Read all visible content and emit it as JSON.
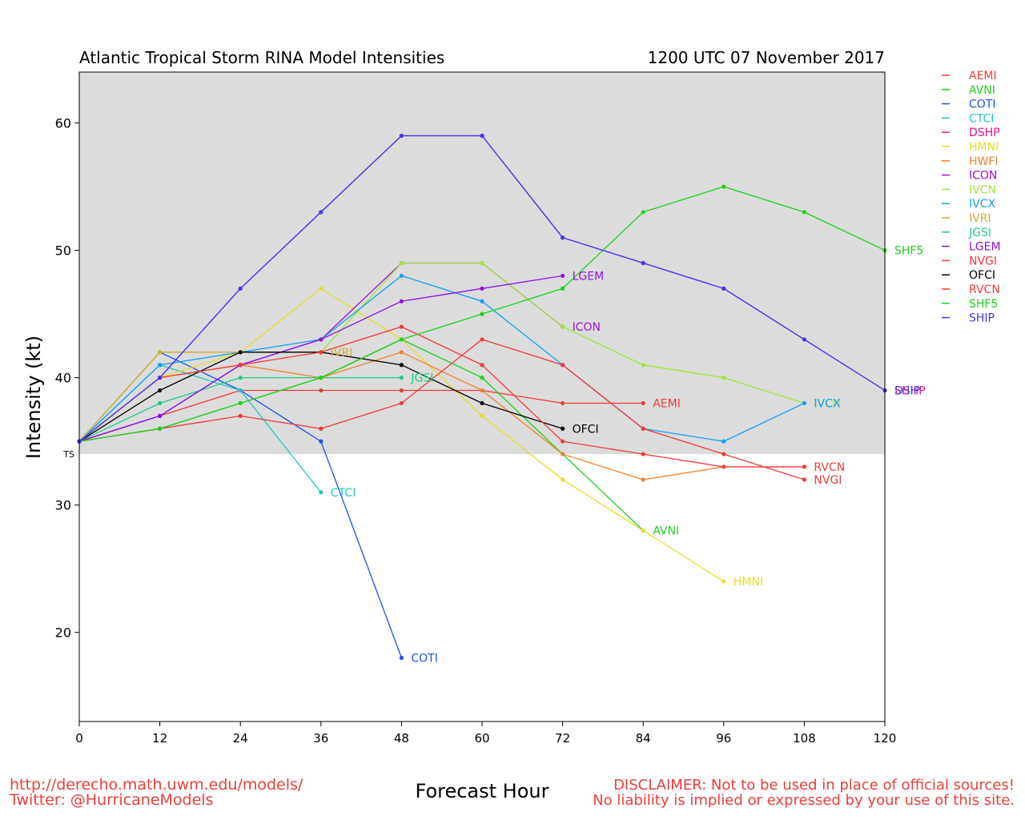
{
  "chart_data": {
    "type": "line",
    "title": "Atlantic Tropical Storm RINA Model Intensities",
    "subtitle": "1200 UTC 07 November 2017",
    "xlabel": "Forecast Hour",
    "ylabel": "Intensity (kt)",
    "xlim": [
      0,
      120
    ],
    "ylim": [
      13,
      64
    ],
    "xticks": [
      0,
      12,
      24,
      36,
      48,
      60,
      72,
      84,
      96,
      108,
      120
    ],
    "yticks": [
      20,
      30,
      40,
      50,
      60
    ],
    "threshold": {
      "label": "TS",
      "value": 34
    },
    "legend_position": "right",
    "series": [
      {
        "name": "AEMI",
        "color": "#ef3b3b",
        "end_label": "AEMI",
        "points": [
          [
            0,
            35
          ],
          [
            12,
            37
          ],
          [
            24,
            39
          ],
          [
            36,
            39
          ],
          [
            48,
            39
          ],
          [
            60,
            39
          ],
          [
            72,
            38
          ],
          [
            84,
            38
          ]
        ]
      },
      {
        "name": "AVNI",
        "color": "#1ed21e",
        "end_label": "AVNI",
        "points": [
          [
            0,
            35
          ],
          [
            12,
            36
          ],
          [
            24,
            38
          ],
          [
            36,
            40
          ],
          [
            48,
            43
          ],
          [
            60,
            40
          ],
          [
            72,
            34
          ],
          [
            84,
            28
          ]
        ]
      },
      {
        "name": "COTI",
        "color": "#1e52e6",
        "end_label": "COTI",
        "points": [
          [
            0,
            35
          ],
          [
            12,
            42
          ],
          [
            24,
            39
          ],
          [
            36,
            35
          ],
          [
            48,
            18
          ]
        ]
      },
      {
        "name": "CTCI",
        "color": "#1ec8c8",
        "end_label": "CTCI",
        "points": [
          [
            0,
            35
          ],
          [
            12,
            41
          ],
          [
            24,
            39
          ],
          [
            36,
            31
          ]
        ]
      },
      {
        "name": "DSHP",
        "color": "#e6148c",
        "end_label": "DSHP",
        "points": [
          [
            0,
            35
          ],
          [
            12,
            40
          ],
          [
            24,
            47
          ],
          [
            36,
            53
          ],
          [
            48,
            59
          ],
          [
            60,
            59
          ],
          [
            72,
            51
          ],
          [
            84,
            49
          ],
          [
            96,
            47
          ],
          [
            108,
            43
          ],
          [
            120,
            39
          ]
        ]
      },
      {
        "name": "HMNI",
        "color": "#e6dc28",
        "end_label": "HMNI",
        "points": [
          [
            0,
            35
          ],
          [
            12,
            40
          ],
          [
            24,
            42
          ],
          [
            36,
            47
          ],
          [
            48,
            43
          ],
          [
            60,
            37
          ],
          [
            72,
            32
          ],
          [
            84,
            28
          ],
          [
            96,
            24
          ]
        ]
      },
      {
        "name": "HWFI",
        "color": "#f0822c",
        "end_label": "",
        "points": [
          [
            0,
            35
          ],
          [
            12,
            40
          ],
          [
            24,
            41
          ],
          [
            36,
            40
          ],
          [
            48,
            42
          ],
          [
            60,
            39
          ],
          [
            72,
            34
          ],
          [
            84,
            32
          ],
          [
            96,
            33
          ],
          [
            108,
            33
          ]
        ]
      },
      {
        "name": "ICON",
        "color": "#a014d2",
        "end_label": "ICON",
        "points": [
          [
            0,
            35
          ],
          [
            12,
            37
          ],
          [
            24,
            41
          ],
          [
            36,
            43
          ],
          [
            48,
            49
          ],
          [
            60,
            49
          ],
          [
            72,
            44
          ]
        ]
      },
      {
        "name": "IVCN",
        "color": "#9ee63c",
        "end_label": "IVCN",
        "points": [
          [
            0,
            35
          ],
          [
            12,
            42
          ],
          [
            24,
            42
          ],
          [
            36,
            42
          ],
          [
            48,
            49
          ],
          [
            60,
            49
          ],
          [
            72,
            44
          ],
          [
            84,
            41
          ],
          [
            96,
            40
          ],
          [
            108,
            38
          ]
        ]
      },
      {
        "name": "IVCX",
        "color": "#14a0f0",
        "end_label": "IVCX",
        "points": [
          [
            0,
            35
          ],
          [
            12,
            41
          ],
          [
            24,
            42
          ],
          [
            36,
            43
          ],
          [
            48,
            48
          ],
          [
            60,
            46
          ],
          [
            72,
            41
          ],
          [
            84,
            36
          ],
          [
            96,
            35
          ],
          [
            108,
            38
          ]
        ]
      },
      {
        "name": "IVRI",
        "color": "#d2aa3c",
        "end_label": "IVRI",
        "points": [
          [
            0,
            35
          ],
          [
            12,
            42
          ],
          [
            24,
            42
          ],
          [
            36,
            42
          ]
        ]
      },
      {
        "name": "JGSI",
        "color": "#1ecd82",
        "end_label": "JGSI",
        "points": [
          [
            0,
            35
          ],
          [
            12,
            38
          ],
          [
            24,
            40
          ],
          [
            36,
            40
          ],
          [
            48,
            40
          ]
        ]
      },
      {
        "name": "LGEM",
        "color": "#8c14e6",
        "end_label": "LGEM",
        "points": [
          [
            0,
            35
          ],
          [
            12,
            37
          ],
          [
            24,
            41
          ],
          [
            36,
            43
          ],
          [
            48,
            46
          ],
          [
            60,
            47
          ],
          [
            72,
            48
          ]
        ]
      },
      {
        "name": "NVGI",
        "color": "#ef3b3b",
        "end_label": "NVGI",
        "points": [
          [
            0,
            35
          ],
          [
            12,
            36
          ],
          [
            24,
            37
          ],
          [
            36,
            36
          ],
          [
            48,
            38
          ],
          [
            60,
            43
          ],
          [
            72,
            41
          ],
          [
            84,
            36
          ],
          [
            96,
            34
          ],
          [
            108,
            32
          ]
        ]
      },
      {
        "name": "OFCI",
        "color": "#000000",
        "end_label": "OFCI",
        "points": [
          [
            0,
            35
          ],
          [
            12,
            39
          ],
          [
            24,
            42
          ],
          [
            36,
            42
          ],
          [
            48,
            41
          ],
          [
            60,
            38
          ],
          [
            72,
            36
          ]
        ]
      },
      {
        "name": "RVCN",
        "color": "#ef3b3b",
        "end_label": "RVCN",
        "points": [
          [
            0,
            35
          ],
          [
            12,
            40
          ],
          [
            24,
            41
          ],
          [
            36,
            42
          ],
          [
            48,
            44
          ],
          [
            60,
            41
          ],
          [
            72,
            35
          ],
          [
            84,
            34
          ],
          [
            96,
            33
          ],
          [
            108,
            33
          ]
        ]
      },
      {
        "name": "SHF5",
        "color": "#1ed21e",
        "end_label": "SHF5",
        "points": [
          [
            0,
            35
          ],
          [
            12,
            36
          ],
          [
            24,
            38
          ],
          [
            36,
            40
          ],
          [
            48,
            43
          ],
          [
            60,
            45
          ],
          [
            72,
            47
          ],
          [
            84,
            53
          ],
          [
            96,
            55
          ],
          [
            108,
            53
          ],
          [
            120,
            50
          ]
        ]
      },
      {
        "name": "SHIP",
        "color": "#3c3cf0",
        "end_label": "SHIP",
        "points": [
          [
            0,
            35
          ],
          [
            12,
            40
          ],
          [
            24,
            47
          ],
          [
            36,
            53
          ],
          [
            48,
            59
          ],
          [
            60,
            59
          ],
          [
            72,
            51
          ],
          [
            84,
            49
          ],
          [
            96,
            47
          ],
          [
            108,
            43
          ],
          [
            120,
            39
          ]
        ]
      }
    ]
  },
  "footer": {
    "url": "http://derecho.math.uwm.edu/models/",
    "twitter": "Twitter: @HurricaneModels",
    "disclaimer_1": "DISCLAIMER: Not to be used in place of official sources!",
    "disclaimer_2": "No liability is implied or expressed by your use of this site."
  }
}
